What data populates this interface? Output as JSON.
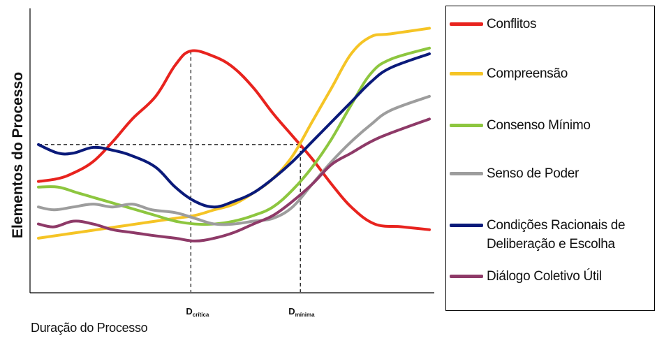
{
  "chart_data": {
    "type": "line",
    "ylabel": "Elementos do Processo",
    "xlabel": "Duração do Processo",
    "xlim": [
      0,
      100
    ],
    "ylim": [
      0,
      100
    ],
    "grid": false,
    "legend_position": "right",
    "markers": [
      {
        "main": "D",
        "sub": "crítica",
        "x": 39
      },
      {
        "main": "D",
        "sub": "mínima",
        "x": 67
      }
    ],
    "reference_y": 52,
    "series": [
      {
        "name": "Conflitos",
        "color": "#e8231e",
        "x": [
          0,
          5,
          9,
          14,
          19,
          24,
          30,
          35,
          39,
          45,
          50,
          55,
          60,
          65,
          70,
          75,
          80,
          86,
          93,
          100
        ],
        "y": [
          39,
          40,
          42,
          46,
          53,
          61,
          69,
          80,
          85,
          83,
          79,
          72,
          63,
          55,
          47,
          38,
          30,
          24,
          23,
          22
        ]
      },
      {
        "name": "Compreensão",
        "color": "#f5c425",
        "x": [
          0,
          5,
          10,
          15,
          20,
          25,
          30,
          35,
          40,
          45,
          50,
          55,
          60,
          65,
          70,
          75,
          80,
          85,
          90,
          100
        ],
        "y": [
          19,
          20,
          21,
          22,
          23,
          24,
          25,
          26,
          27,
          29,
          31,
          35,
          40,
          48,
          60,
          72,
          84,
          90,
          91,
          93
        ]
      },
      {
        "name": "Consenso Mínimo",
        "color": "#8dc63f",
        "x": [
          0,
          5,
          10,
          15,
          20,
          25,
          30,
          35,
          40,
          45,
          50,
          55,
          60,
          65,
          70,
          75,
          80,
          85,
          90,
          100
        ],
        "y": [
          37,
          37,
          35,
          33,
          31,
          29,
          27,
          25,
          24,
          24,
          25,
          27,
          30,
          36,
          44,
          54,
          66,
          77,
          82,
          86
        ]
      },
      {
        "name": "Senso de Poder",
        "color": "#9d9d9d",
        "x": [
          0,
          4,
          9,
          14,
          19,
          24,
          29,
          35,
          40,
          45,
          50,
          55,
          60,
          65,
          70,
          75,
          80,
          85,
          90,
          100
        ],
        "y": [
          30,
          29,
          30,
          31,
          30,
          31,
          29,
          28,
          26,
          24,
          24,
          25,
          26,
          30,
          38,
          46,
          53,
          59,
          64,
          69
        ]
      },
      {
        "name": "Condições Racionais de Deliberação e Escolha",
        "color": "#0a1a7a",
        "x": [
          0,
          5,
          9,
          14,
          19,
          24,
          30,
          35,
          40,
          45,
          50,
          55,
          60,
          65,
          70,
          75,
          80,
          85,
          90,
          100
        ],
        "y": [
          52,
          49,
          49,
          51,
          50,
          48,
          44,
          37,
          32,
          30,
          32,
          35,
          40,
          46,
          53,
          60,
          67,
          74,
          79,
          84
        ]
      },
      {
        "name": "Diálogo Coletivo Útil",
        "color": "#8e3a68",
        "x": [
          0,
          4,
          9,
          14,
          19,
          24,
          29,
          35,
          40,
          45,
          50,
          55,
          60,
          65,
          70,
          75,
          80,
          85,
          90,
          100
        ],
        "y": [
          24,
          23,
          25,
          24,
          22,
          21,
          20,
          19,
          18,
          19,
          21,
          24,
          27,
          32,
          38,
          45,
          49,
          53,
          56,
          61
        ]
      }
    ]
  }
}
